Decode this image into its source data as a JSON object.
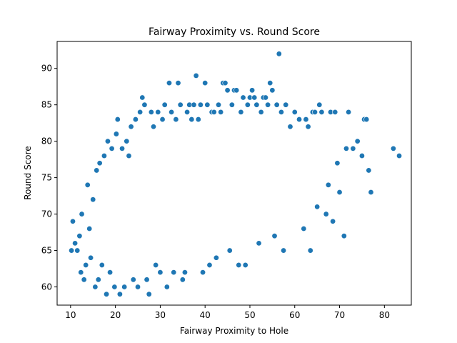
{
  "chart_data": {
    "type": "scatter",
    "title": "Fairway Proximity vs. Round Score",
    "xlabel": "Fairway Proximity to Hole",
    "ylabel": "Round Score",
    "xlim": [
      7.0,
      86.0
    ],
    "ylim": [
      57.5,
      93.7
    ],
    "xticks": [
      10,
      20,
      30,
      40,
      50,
      60,
      70,
      80
    ],
    "yticks": [
      60,
      65,
      70,
      75,
      80,
      85,
      90
    ],
    "grid": false,
    "legend": "none",
    "color": "#1f77b4",
    "series": [
      {
        "points": [
          [
            10.2,
            65
          ],
          [
            10.5,
            69
          ],
          [
            11.0,
            66
          ],
          [
            11.5,
            65
          ],
          [
            12.0,
            67
          ],
          [
            12.3,
            62
          ],
          [
            12.5,
            70
          ],
          [
            13.0,
            61
          ],
          [
            13.4,
            63
          ],
          [
            13.8,
            74
          ],
          [
            14.2,
            68
          ],
          [
            14.5,
            64
          ],
          [
            15.0,
            72
          ],
          [
            15.5,
            60
          ],
          [
            15.8,
            76
          ],
          [
            16.2,
            61
          ],
          [
            16.5,
            77
          ],
          [
            17.0,
            63
          ],
          [
            17.5,
            78
          ],
          [
            18.0,
            59
          ],
          [
            18.3,
            80
          ],
          [
            18.8,
            62
          ],
          [
            19.2,
            79
          ],
          [
            19.8,
            60
          ],
          [
            20.2,
            81
          ],
          [
            20.5,
            83
          ],
          [
            21.0,
            59
          ],
          [
            21.5,
            79
          ],
          [
            22.0,
            60
          ],
          [
            22.5,
            80
          ],
          [
            23.0,
            78
          ],
          [
            23.5,
            82
          ],
          [
            24.0,
            61
          ],
          [
            24.5,
            83
          ],
          [
            25.0,
            60
          ],
          [
            25.5,
            84
          ],
          [
            26.0,
            86
          ],
          [
            26.5,
            85
          ],
          [
            27.0,
            61
          ],
          [
            27.5,
            59
          ],
          [
            28.0,
            84
          ],
          [
            28.5,
            82
          ],
          [
            29.0,
            63
          ],
          [
            29.5,
            84
          ],
          [
            30.0,
            62
          ],
          [
            30.5,
            83
          ],
          [
            31.0,
            85
          ],
          [
            31.5,
            60
          ],
          [
            32.0,
            88
          ],
          [
            32.5,
            84
          ],
          [
            33.0,
            62
          ],
          [
            33.5,
            83
          ],
          [
            34.0,
            88
          ],
          [
            34.5,
            85
          ],
          [
            35.0,
            61
          ],
          [
            35.5,
            62
          ],
          [
            36.0,
            84
          ],
          [
            36.5,
            85
          ],
          [
            37.0,
            83
          ],
          [
            37.5,
            85
          ],
          [
            38.0,
            89
          ],
          [
            38.5,
            83
          ],
          [
            39.0,
            85
          ],
          [
            39.5,
            62
          ],
          [
            40.0,
            88
          ],
          [
            40.5,
            85
          ],
          [
            41.0,
            63
          ],
          [
            41.5,
            84
          ],
          [
            42.0,
            84
          ],
          [
            42.5,
            64
          ],
          [
            43.0,
            85
          ],
          [
            43.5,
            84
          ],
          [
            44.0,
            88
          ],
          [
            44.5,
            88
          ],
          [
            45.0,
            87
          ],
          [
            45.5,
            65
          ],
          [
            46.0,
            85
          ],
          [
            46.5,
            87
          ],
          [
            47.0,
            87
          ],
          [
            47.5,
            63
          ],
          [
            48.0,
            84
          ],
          [
            48.5,
            86
          ],
          [
            49.0,
            63
          ],
          [
            49.5,
            85
          ],
          [
            50.0,
            86
          ],
          [
            50.5,
            87
          ],
          [
            51.0,
            86
          ],
          [
            51.5,
            85
          ],
          [
            52.0,
            66
          ],
          [
            52.5,
            84
          ],
          [
            53.0,
            86
          ],
          [
            53.5,
            86
          ],
          [
            54.0,
            85
          ],
          [
            54.5,
            88
          ],
          [
            55.0,
            87
          ],
          [
            55.5,
            67
          ],
          [
            56.0,
            85
          ],
          [
            56.5,
            92
          ],
          [
            57.0,
            84
          ],
          [
            57.5,
            65
          ],
          [
            58.0,
            85
          ],
          [
            59.0,
            82
          ],
          [
            60.0,
            84
          ],
          [
            61.0,
            83
          ],
          [
            62.0,
            68
          ],
          [
            62.5,
            83
          ],
          [
            63.0,
            82
          ],
          [
            63.5,
            65
          ],
          [
            64.0,
            84
          ],
          [
            64.5,
            84
          ],
          [
            65.0,
            71
          ],
          [
            65.5,
            85
          ],
          [
            66.0,
            84
          ],
          [
            67.0,
            70
          ],
          [
            67.5,
            74
          ],
          [
            68.0,
            84
          ],
          [
            68.5,
            69
          ],
          [
            69.0,
            84
          ],
          [
            69.5,
            77
          ],
          [
            70.0,
            73
          ],
          [
            71.0,
            67
          ],
          [
            71.5,
            79
          ],
          [
            72.0,
            84
          ],
          [
            73.0,
            79
          ],
          [
            74.0,
            80
          ],
          [
            75.0,
            78
          ],
          [
            75.5,
            83
          ],
          [
            76.0,
            83
          ],
          [
            76.5,
            76
          ],
          [
            77.0,
            73
          ],
          [
            82.0,
            79
          ],
          [
            83.3,
            78
          ]
        ]
      }
    ]
  }
}
